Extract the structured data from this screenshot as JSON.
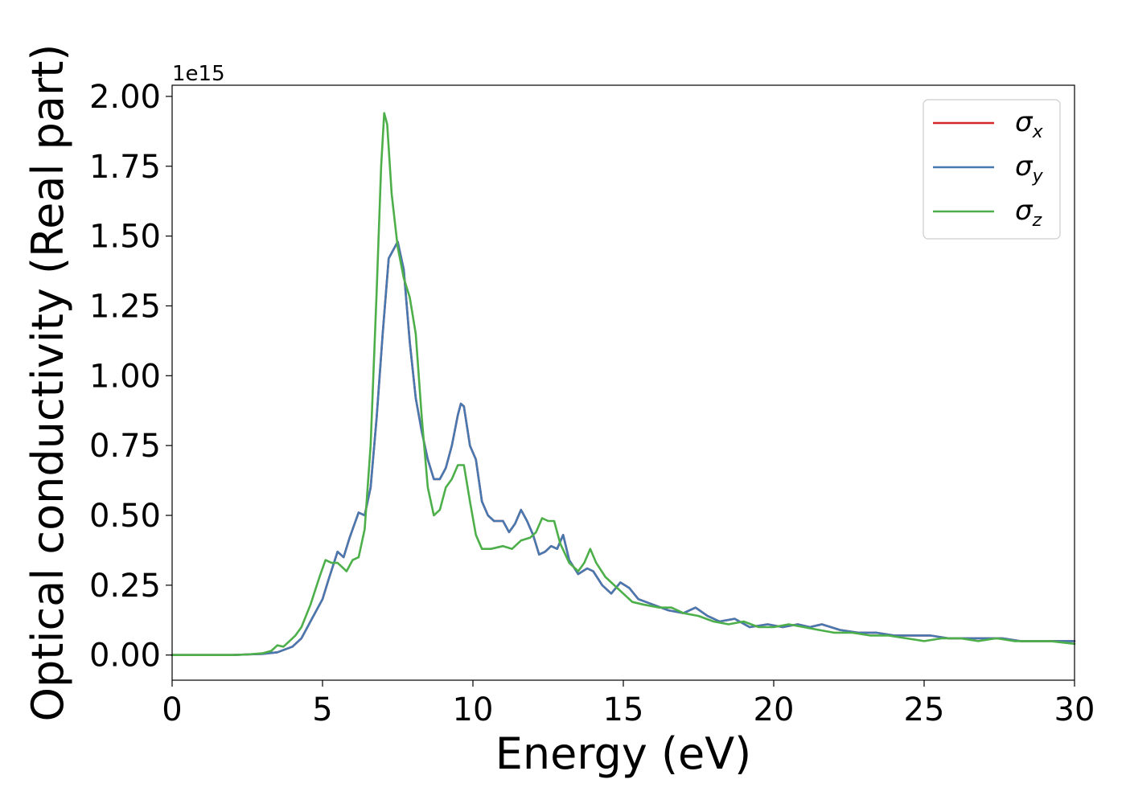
{
  "chart_data": {
    "type": "line",
    "xlabel": "Energy (eV)",
    "ylabel": "Optical conductivity (Real part)",
    "y_offset_label": "1e15",
    "xlim": [
      0,
      30
    ],
    "ylim": [
      -0.09,
      2.04
    ],
    "x_ticks": [
      0,
      5,
      10,
      15,
      20,
      25,
      30
    ],
    "x_tick_labels": [
      "0",
      "5",
      "10",
      "15",
      "20",
      "25",
      "30"
    ],
    "y_ticks": [
      0.0,
      0.25,
      0.5,
      0.75,
      1.0,
      1.25,
      1.5,
      1.75,
      2.0
    ],
    "y_tick_labels": [
      "0.00",
      "0.25",
      "0.50",
      "0.75",
      "1.00",
      "1.25",
      "1.50",
      "1.75",
      "2.00"
    ],
    "grid": false,
    "legend_position": "top-right",
    "series": [
      {
        "name": "σx",
        "symbol": "σ",
        "subscript": "x",
        "color": "#d62728",
        "points": [
          [
            0.0,
            0.0
          ],
          [
            1.0,
            0.0
          ],
          [
            2.0,
            0.0
          ],
          [
            2.5,
            0.002
          ],
          [
            3.0,
            0.004
          ],
          [
            3.5,
            0.01
          ],
          [
            4.0,
            0.03
          ],
          [
            4.3,
            0.06
          ],
          [
            4.6,
            0.12
          ],
          [
            5.0,
            0.2
          ],
          [
            5.2,
            0.27
          ],
          [
            5.5,
            0.37
          ],
          [
            5.7,
            0.35
          ],
          [
            5.9,
            0.42
          ],
          [
            6.1,
            0.48
          ],
          [
            6.2,
            0.51
          ],
          [
            6.4,
            0.5
          ],
          [
            6.6,
            0.6
          ],
          [
            6.8,
            0.85
          ],
          [
            7.0,
            1.15
          ],
          [
            7.2,
            1.42
          ],
          [
            7.4,
            1.46
          ],
          [
            7.5,
            1.48
          ],
          [
            7.7,
            1.38
          ],
          [
            7.9,
            1.12
          ],
          [
            8.1,
            0.92
          ],
          [
            8.3,
            0.8
          ],
          [
            8.5,
            0.7
          ],
          [
            8.7,
            0.63
          ],
          [
            8.9,
            0.63
          ],
          [
            9.1,
            0.67
          ],
          [
            9.3,
            0.75
          ],
          [
            9.5,
            0.86
          ],
          [
            9.6,
            0.9
          ],
          [
            9.7,
            0.89
          ],
          [
            9.9,
            0.75
          ],
          [
            10.1,
            0.7
          ],
          [
            10.3,
            0.55
          ],
          [
            10.5,
            0.5
          ],
          [
            10.7,
            0.48
          ],
          [
            11.0,
            0.48
          ],
          [
            11.2,
            0.44
          ],
          [
            11.4,
            0.47
          ],
          [
            11.6,
            0.52
          ],
          [
            11.8,
            0.48
          ],
          [
            12.0,
            0.43
          ],
          [
            12.2,
            0.36
          ],
          [
            12.4,
            0.37
          ],
          [
            12.6,
            0.39
          ],
          [
            12.8,
            0.38
          ],
          [
            13.0,
            0.43
          ],
          [
            13.2,
            0.34
          ],
          [
            13.5,
            0.29
          ],
          [
            13.8,
            0.31
          ],
          [
            14.0,
            0.3
          ],
          [
            14.3,
            0.25
          ],
          [
            14.6,
            0.22
          ],
          [
            14.9,
            0.26
          ],
          [
            15.2,
            0.24
          ],
          [
            15.5,
            0.2
          ],
          [
            16.0,
            0.18
          ],
          [
            16.5,
            0.16
          ],
          [
            17.0,
            0.15
          ],
          [
            17.4,
            0.17
          ],
          [
            17.8,
            0.14
          ],
          [
            18.2,
            0.12
          ],
          [
            18.7,
            0.13
          ],
          [
            19.2,
            0.1
          ],
          [
            19.8,
            0.11
          ],
          [
            20.3,
            0.1
          ],
          [
            20.8,
            0.11
          ],
          [
            21.2,
            0.1
          ],
          [
            21.6,
            0.11
          ],
          [
            22.2,
            0.09
          ],
          [
            22.8,
            0.08
          ],
          [
            23.4,
            0.08
          ],
          [
            24.0,
            0.07
          ],
          [
            24.6,
            0.07
          ],
          [
            25.2,
            0.07
          ],
          [
            25.8,
            0.06
          ],
          [
            26.4,
            0.06
          ],
          [
            27.0,
            0.06
          ],
          [
            27.6,
            0.06
          ],
          [
            28.2,
            0.05
          ],
          [
            28.8,
            0.05
          ],
          [
            29.4,
            0.05
          ],
          [
            30.0,
            0.05
          ]
        ]
      },
      {
        "name": "σy",
        "symbol": "σ",
        "subscript": "y",
        "color": "#4878b0",
        "points": [
          [
            0.0,
            0.0
          ],
          [
            1.0,
            0.0
          ],
          [
            2.0,
            0.0
          ],
          [
            2.5,
            0.002
          ],
          [
            3.0,
            0.004
          ],
          [
            3.5,
            0.01
          ],
          [
            4.0,
            0.03
          ],
          [
            4.3,
            0.06
          ],
          [
            4.6,
            0.12
          ],
          [
            5.0,
            0.2
          ],
          [
            5.2,
            0.27
          ],
          [
            5.5,
            0.37
          ],
          [
            5.7,
            0.35
          ],
          [
            5.9,
            0.42
          ],
          [
            6.1,
            0.48
          ],
          [
            6.2,
            0.51
          ],
          [
            6.4,
            0.5
          ],
          [
            6.6,
            0.6
          ],
          [
            6.8,
            0.85
          ],
          [
            7.0,
            1.15
          ],
          [
            7.2,
            1.42
          ],
          [
            7.4,
            1.46
          ],
          [
            7.5,
            1.48
          ],
          [
            7.7,
            1.38
          ],
          [
            7.9,
            1.12
          ],
          [
            8.1,
            0.92
          ],
          [
            8.3,
            0.8
          ],
          [
            8.5,
            0.7
          ],
          [
            8.7,
            0.63
          ],
          [
            8.9,
            0.63
          ],
          [
            9.1,
            0.67
          ],
          [
            9.3,
            0.75
          ],
          [
            9.5,
            0.86
          ],
          [
            9.6,
            0.9
          ],
          [
            9.7,
            0.89
          ],
          [
            9.9,
            0.75
          ],
          [
            10.1,
            0.7
          ],
          [
            10.3,
            0.55
          ],
          [
            10.5,
            0.5
          ],
          [
            10.7,
            0.48
          ],
          [
            11.0,
            0.48
          ],
          [
            11.2,
            0.44
          ],
          [
            11.4,
            0.47
          ],
          [
            11.6,
            0.52
          ],
          [
            11.8,
            0.48
          ],
          [
            12.0,
            0.43
          ],
          [
            12.2,
            0.36
          ],
          [
            12.4,
            0.37
          ],
          [
            12.6,
            0.39
          ],
          [
            12.8,
            0.38
          ],
          [
            13.0,
            0.43
          ],
          [
            13.2,
            0.34
          ],
          [
            13.5,
            0.29
          ],
          [
            13.8,
            0.31
          ],
          [
            14.0,
            0.3
          ],
          [
            14.3,
            0.25
          ],
          [
            14.6,
            0.22
          ],
          [
            14.9,
            0.26
          ],
          [
            15.2,
            0.24
          ],
          [
            15.5,
            0.2
          ],
          [
            16.0,
            0.18
          ],
          [
            16.5,
            0.16
          ],
          [
            17.0,
            0.15
          ],
          [
            17.4,
            0.17
          ],
          [
            17.8,
            0.14
          ],
          [
            18.2,
            0.12
          ],
          [
            18.7,
            0.13
          ],
          [
            19.2,
            0.1
          ],
          [
            19.8,
            0.11
          ],
          [
            20.3,
            0.1
          ],
          [
            20.8,
            0.11
          ],
          [
            21.2,
            0.1
          ],
          [
            21.6,
            0.11
          ],
          [
            22.2,
            0.09
          ],
          [
            22.8,
            0.08
          ],
          [
            23.4,
            0.08
          ],
          [
            24.0,
            0.07
          ],
          [
            24.6,
            0.07
          ],
          [
            25.2,
            0.07
          ],
          [
            25.8,
            0.06
          ],
          [
            26.4,
            0.06
          ],
          [
            27.0,
            0.06
          ],
          [
            27.6,
            0.06
          ],
          [
            28.2,
            0.05
          ],
          [
            28.8,
            0.05
          ],
          [
            29.4,
            0.05
          ],
          [
            30.0,
            0.05
          ]
        ]
      },
      {
        "name": "σz",
        "symbol": "σ",
        "subscript": "z",
        "color": "#4daf4a",
        "points": [
          [
            0.0,
            0.0
          ],
          [
            1.0,
            0.0
          ],
          [
            2.0,
            0.0
          ],
          [
            2.5,
            0.002
          ],
          [
            3.0,
            0.006
          ],
          [
            3.3,
            0.015
          ],
          [
            3.5,
            0.035
          ],
          [
            3.7,
            0.03
          ],
          [
            3.9,
            0.05
          ],
          [
            4.1,
            0.07
          ],
          [
            4.3,
            0.1
          ],
          [
            4.6,
            0.18
          ],
          [
            4.9,
            0.28
          ],
          [
            5.1,
            0.34
          ],
          [
            5.3,
            0.33
          ],
          [
            5.5,
            0.33
          ],
          [
            5.8,
            0.3
          ],
          [
            6.0,
            0.34
          ],
          [
            6.2,
            0.35
          ],
          [
            6.4,
            0.45
          ],
          [
            6.6,
            0.75
          ],
          [
            6.8,
            1.3
          ],
          [
            6.95,
            1.75
          ],
          [
            7.05,
            1.94
          ],
          [
            7.15,
            1.9
          ],
          [
            7.3,
            1.65
          ],
          [
            7.5,
            1.46
          ],
          [
            7.7,
            1.35
          ],
          [
            7.9,
            1.28
          ],
          [
            8.1,
            1.15
          ],
          [
            8.3,
            0.85
          ],
          [
            8.5,
            0.6
          ],
          [
            8.7,
            0.5
          ],
          [
            8.9,
            0.52
          ],
          [
            9.1,
            0.6
          ],
          [
            9.3,
            0.63
          ],
          [
            9.5,
            0.68
          ],
          [
            9.7,
            0.68
          ],
          [
            9.9,
            0.55
          ],
          [
            10.1,
            0.43
          ],
          [
            10.3,
            0.38
          ],
          [
            10.6,
            0.38
          ],
          [
            11.0,
            0.39
          ],
          [
            11.3,
            0.38
          ],
          [
            11.6,
            0.41
          ],
          [
            11.9,
            0.42
          ],
          [
            12.1,
            0.44
          ],
          [
            12.3,
            0.49
          ],
          [
            12.5,
            0.48
          ],
          [
            12.7,
            0.48
          ],
          [
            12.9,
            0.4
          ],
          [
            13.2,
            0.33
          ],
          [
            13.5,
            0.3
          ],
          [
            13.7,
            0.33
          ],
          [
            13.9,
            0.38
          ],
          [
            14.1,
            0.33
          ],
          [
            14.4,
            0.28
          ],
          [
            14.7,
            0.25
          ],
          [
            15.0,
            0.22
          ],
          [
            15.3,
            0.19
          ],
          [
            15.7,
            0.18
          ],
          [
            16.2,
            0.17
          ],
          [
            16.6,
            0.17
          ],
          [
            17.0,
            0.15
          ],
          [
            17.5,
            0.14
          ],
          [
            18.0,
            0.12
          ],
          [
            18.5,
            0.11
          ],
          [
            19.0,
            0.12
          ],
          [
            19.5,
            0.1
          ],
          [
            20.0,
            0.1
          ],
          [
            20.5,
            0.11
          ],
          [
            21.0,
            0.1
          ],
          [
            21.5,
            0.09
          ],
          [
            22.0,
            0.08
          ],
          [
            22.6,
            0.08
          ],
          [
            23.2,
            0.07
          ],
          [
            23.8,
            0.07
          ],
          [
            24.4,
            0.06
          ],
          [
            25.0,
            0.05
          ],
          [
            25.6,
            0.06
          ],
          [
            26.2,
            0.06
          ],
          [
            26.8,
            0.05
          ],
          [
            27.4,
            0.06
          ],
          [
            28.0,
            0.05
          ],
          [
            28.6,
            0.05
          ],
          [
            29.2,
            0.05
          ],
          [
            30.0,
            0.04
          ]
        ]
      }
    ]
  }
}
